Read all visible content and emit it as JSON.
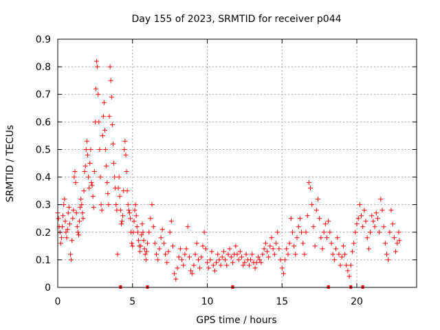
{
  "chart_data": {
    "type": "scatter",
    "title": "Day 155 of 2023, SRMTID for receiver p044",
    "xlabel": "GPS time / hours",
    "ylabel": "SRMTID / TECUs",
    "xlim": [
      0,
      24
    ],
    "ylim": [
      0,
      0.9
    ],
    "x_ticks": [
      0,
      5,
      10,
      15,
      20
    ],
    "x_tick_labels": [
      "0",
      "5",
      "10",
      "15",
      "20"
    ],
    "y_ticks": [
      0,
      0.1,
      0.2,
      0.3,
      0.4,
      0.5,
      0.6,
      0.7,
      0.8,
      0.9
    ],
    "y_tick_labels": [
      "0",
      "0.1",
      "0.2",
      "0.3",
      "0.4",
      "0.5",
      "0.6",
      "0.7",
      "0.8",
      "0.9"
    ],
    "grid": true,
    "legend": "none",
    "marker": "+",
    "color": "#ff0000",
    "gap_markers_x": [
      4.2,
      6.0,
      11.7,
      18.1,
      19.6,
      20.4
    ],
    "series": [
      {
        "name": "SRMTID",
        "points": [
          [
            0.0,
            0.27
          ],
          [
            0.05,
            0.25
          ],
          [
            0.1,
            0.22
          ],
          [
            0.15,
            0.2
          ],
          [
            0.2,
            0.16
          ],
          [
            0.25,
            0.18
          ],
          [
            0.3,
            0.22
          ],
          [
            0.35,
            0.26
          ],
          [
            0.4,
            0.3
          ],
          [
            0.45,
            0.32
          ],
          [
            0.5,
            0.24
          ],
          [
            0.55,
            0.2
          ],
          [
            0.6,
            0.18
          ],
          [
            0.65,
            0.21
          ],
          [
            0.7,
            0.27
          ],
          [
            0.75,
            0.29
          ],
          [
            0.8,
            0.23
          ],
          [
            0.85,
            0.12
          ],
          [
            0.9,
            0.1
          ],
          [
            0.95,
            0.17
          ],
          [
            1.0,
            0.25
          ],
          [
            1.05,
            0.28
          ],
          [
            1.1,
            0.4
          ],
          [
            1.15,
            0.42
          ],
          [
            1.2,
            0.38
          ],
          [
            1.25,
            0.27
          ],
          [
            1.3,
            0.22
          ],
          [
            1.35,
            0.2
          ],
          [
            1.4,
            0.19
          ],
          [
            1.45,
            0.24
          ],
          [
            1.5,
            0.29
          ],
          [
            1.55,
            0.32
          ],
          [
            1.6,
            0.3
          ],
          [
            1.65,
            0.27
          ],
          [
            1.7,
            0.25
          ],
          [
            1.75,
            0.35
          ],
          [
            1.8,
            0.42
          ],
          [
            1.85,
            0.44
          ],
          [
            1.9,
            0.5
          ],
          [
            1.95,
            0.53
          ],
          [
            2.0,
            0.48
          ],
          [
            2.05,
            0.4
          ],
          [
            2.1,
            0.36
          ],
          [
            2.15,
            0.45
          ],
          [
            2.2,
            0.5
          ],
          [
            2.25,
            0.38
          ],
          [
            2.3,
            0.37
          ],
          [
            2.35,
            0.33
          ],
          [
            2.4,
            0.29
          ],
          [
            2.45,
            0.42
          ],
          [
            2.5,
            0.6
          ],
          [
            2.55,
            0.72
          ],
          [
            2.6,
            0.82
          ],
          [
            2.65,
            0.8
          ],
          [
            2.7,
            0.7
          ],
          [
            2.75,
            0.6
          ],
          [
            2.8,
            0.5
          ],
          [
            2.85,
            0.4
          ],
          [
            2.9,
            0.3
          ],
          [
            2.95,
            0.28
          ],
          [
            3.0,
            0.55
          ],
          [
            3.05,
            0.62
          ],
          [
            3.1,
            0.67
          ],
          [
            3.15,
            0.57
          ],
          [
            3.2,
            0.5
          ],
          [
            3.25,
            0.44
          ],
          [
            3.3,
            0.38
          ],
          [
            3.35,
            0.34
          ],
          [
            3.4,
            0.3
          ],
          [
            3.45,
            0.62
          ],
          [
            3.5,
            0.8
          ],
          [
            3.55,
            0.75
          ],
          [
            3.6,
            0.69
          ],
          [
            3.65,
            0.59
          ],
          [
            3.7,
            0.52
          ],
          [
            3.75,
            0.45
          ],
          [
            3.8,
            0.4
          ],
          [
            3.85,
            0.36
          ],
          [
            3.9,
            0.3
          ],
          [
            3.95,
            0.28
          ],
          [
            4.0,
            0.12
          ],
          [
            4.05,
            0.36
          ],
          [
            4.1,
            0.4
          ],
          [
            4.15,
            0.33
          ],
          [
            4.2,
            0.28
          ],
          [
            4.25,
            0.23
          ],
          [
            4.3,
            0.24
          ],
          [
            4.35,
            0.26
          ],
          [
            4.4,
            0.35
          ],
          [
            4.45,
            0.5
          ],
          [
            4.5,
            0.53
          ],
          [
            4.55,
            0.48
          ],
          [
            4.6,
            0.42
          ],
          [
            4.65,
            0.35
          ],
          [
            4.7,
            0.3
          ],
          [
            4.75,
            0.28
          ],
          [
            4.8,
            0.27
          ],
          [
            4.85,
            0.25
          ],
          [
            4.9,
            0.2
          ],
          [
            4.95,
            0.16
          ],
          [
            5.0,
            0.15
          ],
          [
            5.05,
            0.2
          ],
          [
            5.1,
            0.24
          ],
          [
            5.15,
            0.28
          ],
          [
            5.2,
            0.3
          ],
          [
            5.25,
            0.26
          ],
          [
            5.3,
            0.22
          ],
          [
            5.35,
            0.2
          ],
          [
            5.4,
            0.17
          ],
          [
            5.45,
            0.15
          ],
          [
            5.5,
            0.13
          ],
          [
            5.55,
            0.15
          ],
          [
            5.6,
            0.19
          ],
          [
            5.65,
            0.23
          ],
          [
            5.7,
            0.2
          ],
          [
            5.75,
            0.17
          ],
          [
            5.8,
            0.14
          ],
          [
            5.85,
            0.12
          ],
          [
            5.9,
            0.1
          ],
          [
            5.95,
            0.13
          ],
          [
            6.0,
            0.16
          ],
          [
            6.1,
            0.2
          ],
          [
            6.2,
            0.25
          ],
          [
            6.3,
            0.3
          ],
          [
            6.4,
            0.22
          ],
          [
            6.5,
            0.16
          ],
          [
            6.6,
            0.12
          ],
          [
            6.7,
            0.1
          ],
          [
            6.8,
            0.14
          ],
          [
            6.9,
            0.18
          ],
          [
            7.0,
            0.21
          ],
          [
            7.1,
            0.16
          ],
          [
            7.2,
            0.12
          ],
          [
            7.3,
            0.09
          ],
          [
            7.4,
            0.13
          ],
          [
            7.5,
            0.2
          ],
          [
            7.6,
            0.24
          ],
          [
            7.7,
            0.15
          ],
          [
            7.8,
            0.05
          ],
          [
            7.9,
            0.03
          ],
          [
            8.0,
            0.07
          ],
          [
            8.1,
            0.11
          ],
          [
            8.2,
            0.14
          ],
          [
            8.3,
            0.1
          ],
          [
            8.4,
            0.08
          ],
          [
            8.5,
            0.12
          ],
          [
            8.6,
            0.14
          ],
          [
            8.7,
            0.22
          ],
          [
            8.8,
            0.11
          ],
          [
            8.9,
            0.06
          ],
          [
            9.0,
            0.05
          ],
          [
            9.1,
            0.08
          ],
          [
            9.2,
            0.12
          ],
          [
            9.3,
            0.16
          ],
          [
            9.4,
            0.1
          ],
          [
            9.5,
            0.07
          ],
          [
            9.6,
            0.11
          ],
          [
            9.7,
            0.15
          ],
          [
            9.8,
            0.2
          ],
          [
            9.9,
            0.14
          ],
          [
            10.0,
            0.09
          ],
          [
            10.1,
            0.07
          ],
          [
            10.2,
            0.1
          ],
          [
            10.3,
            0.13
          ],
          [
            10.4,
            0.08
          ],
          [
            10.5,
            0.06
          ],
          [
            10.6,
            0.09
          ],
          [
            10.7,
            0.12
          ],
          [
            10.8,
            0.1
          ],
          [
            10.9,
            0.08
          ],
          [
            11.0,
            0.11
          ],
          [
            11.1,
            0.13
          ],
          [
            11.2,
            0.1
          ],
          [
            11.3,
            0.08
          ],
          [
            11.4,
            0.12
          ],
          [
            11.5,
            0.14
          ],
          [
            11.6,
            0.11
          ],
          [
            11.7,
            0.09
          ],
          [
            11.8,
            0.12
          ],
          [
            11.9,
            0.15
          ],
          [
            12.0,
            0.12
          ],
          [
            12.1,
            0.1
          ],
          [
            12.2,
            0.13
          ],
          [
            12.3,
            0.11
          ],
          [
            12.4,
            0.08
          ],
          [
            12.5,
            0.09
          ],
          [
            12.6,
            0.12
          ],
          [
            12.7,
            0.1
          ],
          [
            12.8,
            0.08
          ],
          [
            12.9,
            0.1
          ],
          [
            13.0,
            0.12
          ],
          [
            13.1,
            0.09
          ],
          [
            13.2,
            0.07
          ],
          [
            13.3,
            0.09
          ],
          [
            13.4,
            0.11
          ],
          [
            13.5,
            0.1
          ],
          [
            13.6,
            0.09
          ],
          [
            13.7,
            0.12
          ],
          [
            13.8,
            0.14
          ],
          [
            13.9,
            0.16
          ],
          [
            14.0,
            0.13
          ],
          [
            14.1,
            0.11
          ],
          [
            14.2,
            0.15
          ],
          [
            14.3,
            0.18
          ],
          [
            14.4,
            0.14
          ],
          [
            14.5,
            0.12
          ],
          [
            14.6,
            0.16
          ],
          [
            14.7,
            0.2
          ],
          [
            14.8,
            0.14
          ],
          [
            14.9,
            0.1
          ],
          [
            15.0,
            0.07
          ],
          [
            15.1,
            0.05
          ],
          [
            15.2,
            0.1
          ],
          [
            15.3,
            0.14
          ],
          [
            15.4,
            0.12
          ],
          [
            15.5,
            0.16
          ],
          [
            15.6,
            0.25
          ],
          [
            15.7,
            0.2
          ],
          [
            15.8,
            0.15
          ],
          [
            15.9,
            0.12
          ],
          [
            16.0,
            0.18
          ],
          [
            16.1,
            0.22
          ],
          [
            16.2,
            0.25
          ],
          [
            16.3,
            0.2
          ],
          [
            16.4,
            0.16
          ],
          [
            16.5,
            0.12
          ],
          [
            16.6,
            0.2
          ],
          [
            16.7,
            0.26
          ],
          [
            16.8,
            0.38
          ],
          [
            16.9,
            0.36
          ],
          [
            17.0,
            0.3
          ],
          [
            17.1,
            0.22
          ],
          [
            17.2,
            0.15
          ],
          [
            17.3,
            0.28
          ],
          [
            17.4,
            0.32
          ],
          [
            17.5,
            0.25
          ],
          [
            17.6,
            0.18
          ],
          [
            17.7,
            0.14
          ],
          [
            17.8,
            0.2
          ],
          [
            17.9,
            0.23
          ],
          [
            18.0,
            0.18
          ],
          [
            18.1,
            0.24
          ],
          [
            18.2,
            0.2
          ],
          [
            18.3,
            0.16
          ],
          [
            18.4,
            0.12
          ],
          [
            18.5,
            0.1
          ],
          [
            18.6,
            0.14
          ],
          [
            18.7,
            0.18
          ],
          [
            18.8,
            0.12
          ],
          [
            18.9,
            0.08
          ],
          [
            19.0,
            0.11
          ],
          [
            19.1,
            0.15
          ],
          [
            19.2,
            0.12
          ],
          [
            19.3,
            0.08
          ],
          [
            19.4,
            0.06
          ],
          [
            19.5,
            0.04
          ],
          [
            19.6,
            0.08
          ],
          [
            19.7,
            0.13
          ],
          [
            19.8,
            0.16
          ],
          [
            19.9,
            0.2
          ],
          [
            20.0,
            0.23
          ],
          [
            20.1,
            0.25
          ],
          [
            20.2,
            0.3
          ],
          [
            20.3,
            0.26
          ],
          [
            20.4,
            0.22
          ],
          [
            20.5,
            0.28
          ],
          [
            20.6,
            0.24
          ],
          [
            20.7,
            0.18
          ],
          [
            20.8,
            0.14
          ],
          [
            20.9,
            0.2
          ],
          [
            21.0,
            0.26
          ],
          [
            21.1,
            0.24
          ],
          [
            21.2,
            0.22
          ],
          [
            21.3,
            0.27
          ],
          [
            21.4,
            0.25
          ],
          [
            21.5,
            0.2
          ],
          [
            21.6,
            0.32
          ],
          [
            21.7,
            0.28
          ],
          [
            21.8,
            0.22
          ],
          [
            21.9,
            0.16
          ],
          [
            22.0,
            0.12
          ],
          [
            22.1,
            0.1
          ],
          [
            22.2,
            0.2
          ],
          [
            22.3,
            0.28
          ],
          [
            22.4,
            0.23
          ],
          [
            22.5,
            0.18
          ],
          [
            22.6,
            0.13
          ],
          [
            22.7,
            0.16
          ],
          [
            22.8,
            0.2
          ],
          [
            22.85,
            0.17
          ]
        ]
      }
    ]
  }
}
